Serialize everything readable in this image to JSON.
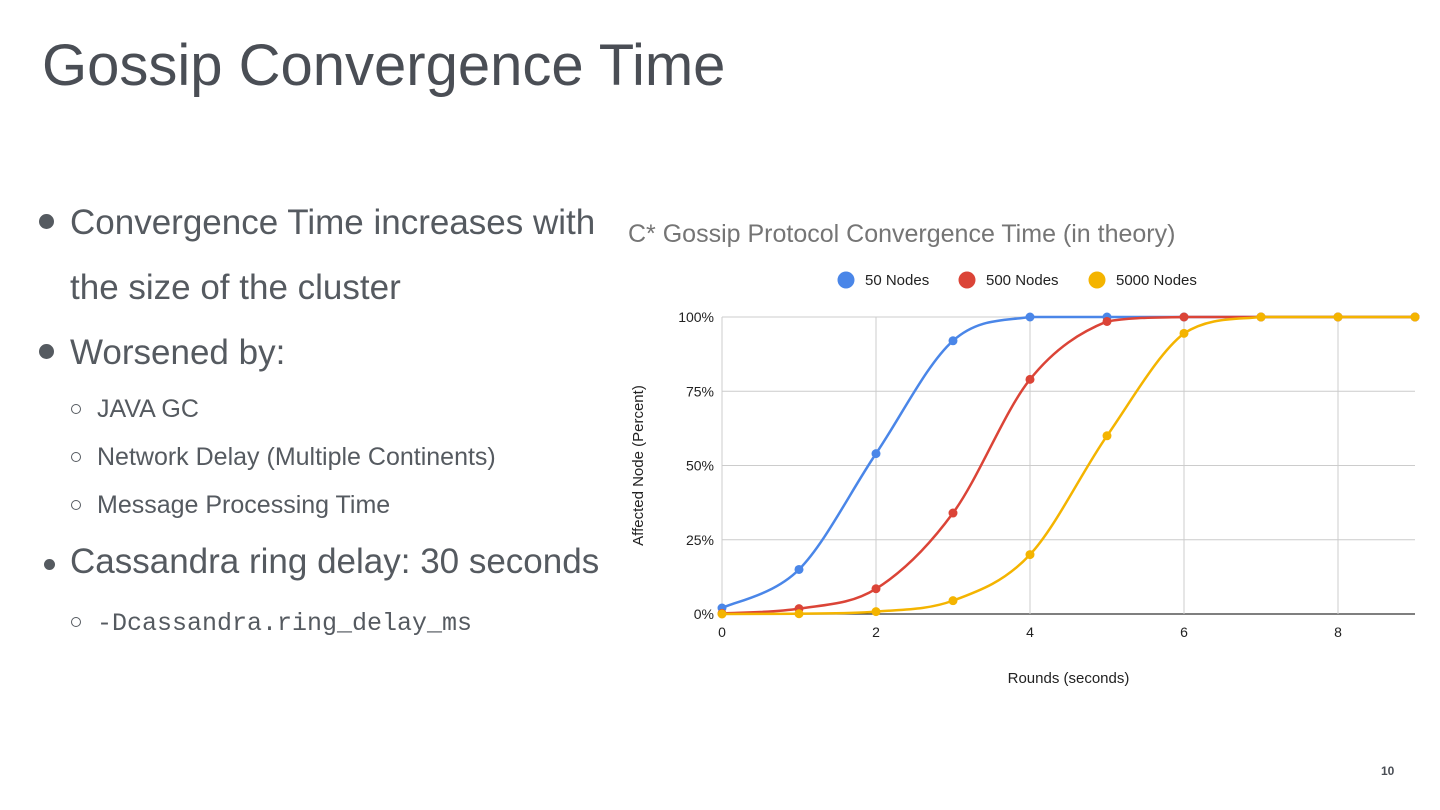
{
  "slide": {
    "title": "Gossip Convergence Time",
    "page_number": "10"
  },
  "bullets": {
    "b1_line1": "Convergence Time increases with",
    "b1_line2": "the size of the cluster",
    "b2": "Worsened by:",
    "b2_sub": [
      "JAVA GC",
      "Network Delay (Multiple Continents)",
      "Message Processing Time"
    ],
    "b3": "Cassandra ring delay: 30 seconds",
    "b3_sub": "-Dcassandra.ring_delay_ms"
  },
  "colors": {
    "text": "#555a60",
    "series_50": "#4a86e8",
    "series_500": "#db4437",
    "series_5000": "#f4b400",
    "grid": "#cccccc"
  },
  "chart_data": {
    "type": "line",
    "title": "C* Gossip Protocol Convergence Time (in theory)",
    "xlabel": "Rounds (seconds)",
    "ylabel": "Affected Node (Percent)",
    "xlim": [
      0,
      9
    ],
    "ylim": [
      0,
      100
    ],
    "x_ticks": [
      0,
      2,
      4,
      6,
      8
    ],
    "y_ticks": [
      0,
      25,
      50,
      75,
      100
    ],
    "y_tick_labels": [
      "0%",
      "25%",
      "50%",
      "75%",
      "100%"
    ],
    "legend_position": "top",
    "grid": true,
    "x": [
      0,
      1,
      2,
      3,
      4,
      5,
      6,
      7,
      8,
      9
    ],
    "series": [
      {
        "name": "50 Nodes",
        "color": "#4a86e8",
        "values": [
          2,
          15,
          54,
          92,
          100,
          100,
          100,
          100,
          100,
          100
        ]
      },
      {
        "name": "500 Nodes",
        "color": "#db4437",
        "values": [
          0.2,
          1.8,
          8.5,
          34,
          79,
          98.5,
          100,
          100,
          100,
          100
        ]
      },
      {
        "name": "5000 Nodes",
        "color": "#f4b400",
        "values": [
          0,
          0.1,
          0.8,
          4.5,
          20,
          60,
          94.5,
          100,
          100,
          100
        ]
      }
    ]
  }
}
